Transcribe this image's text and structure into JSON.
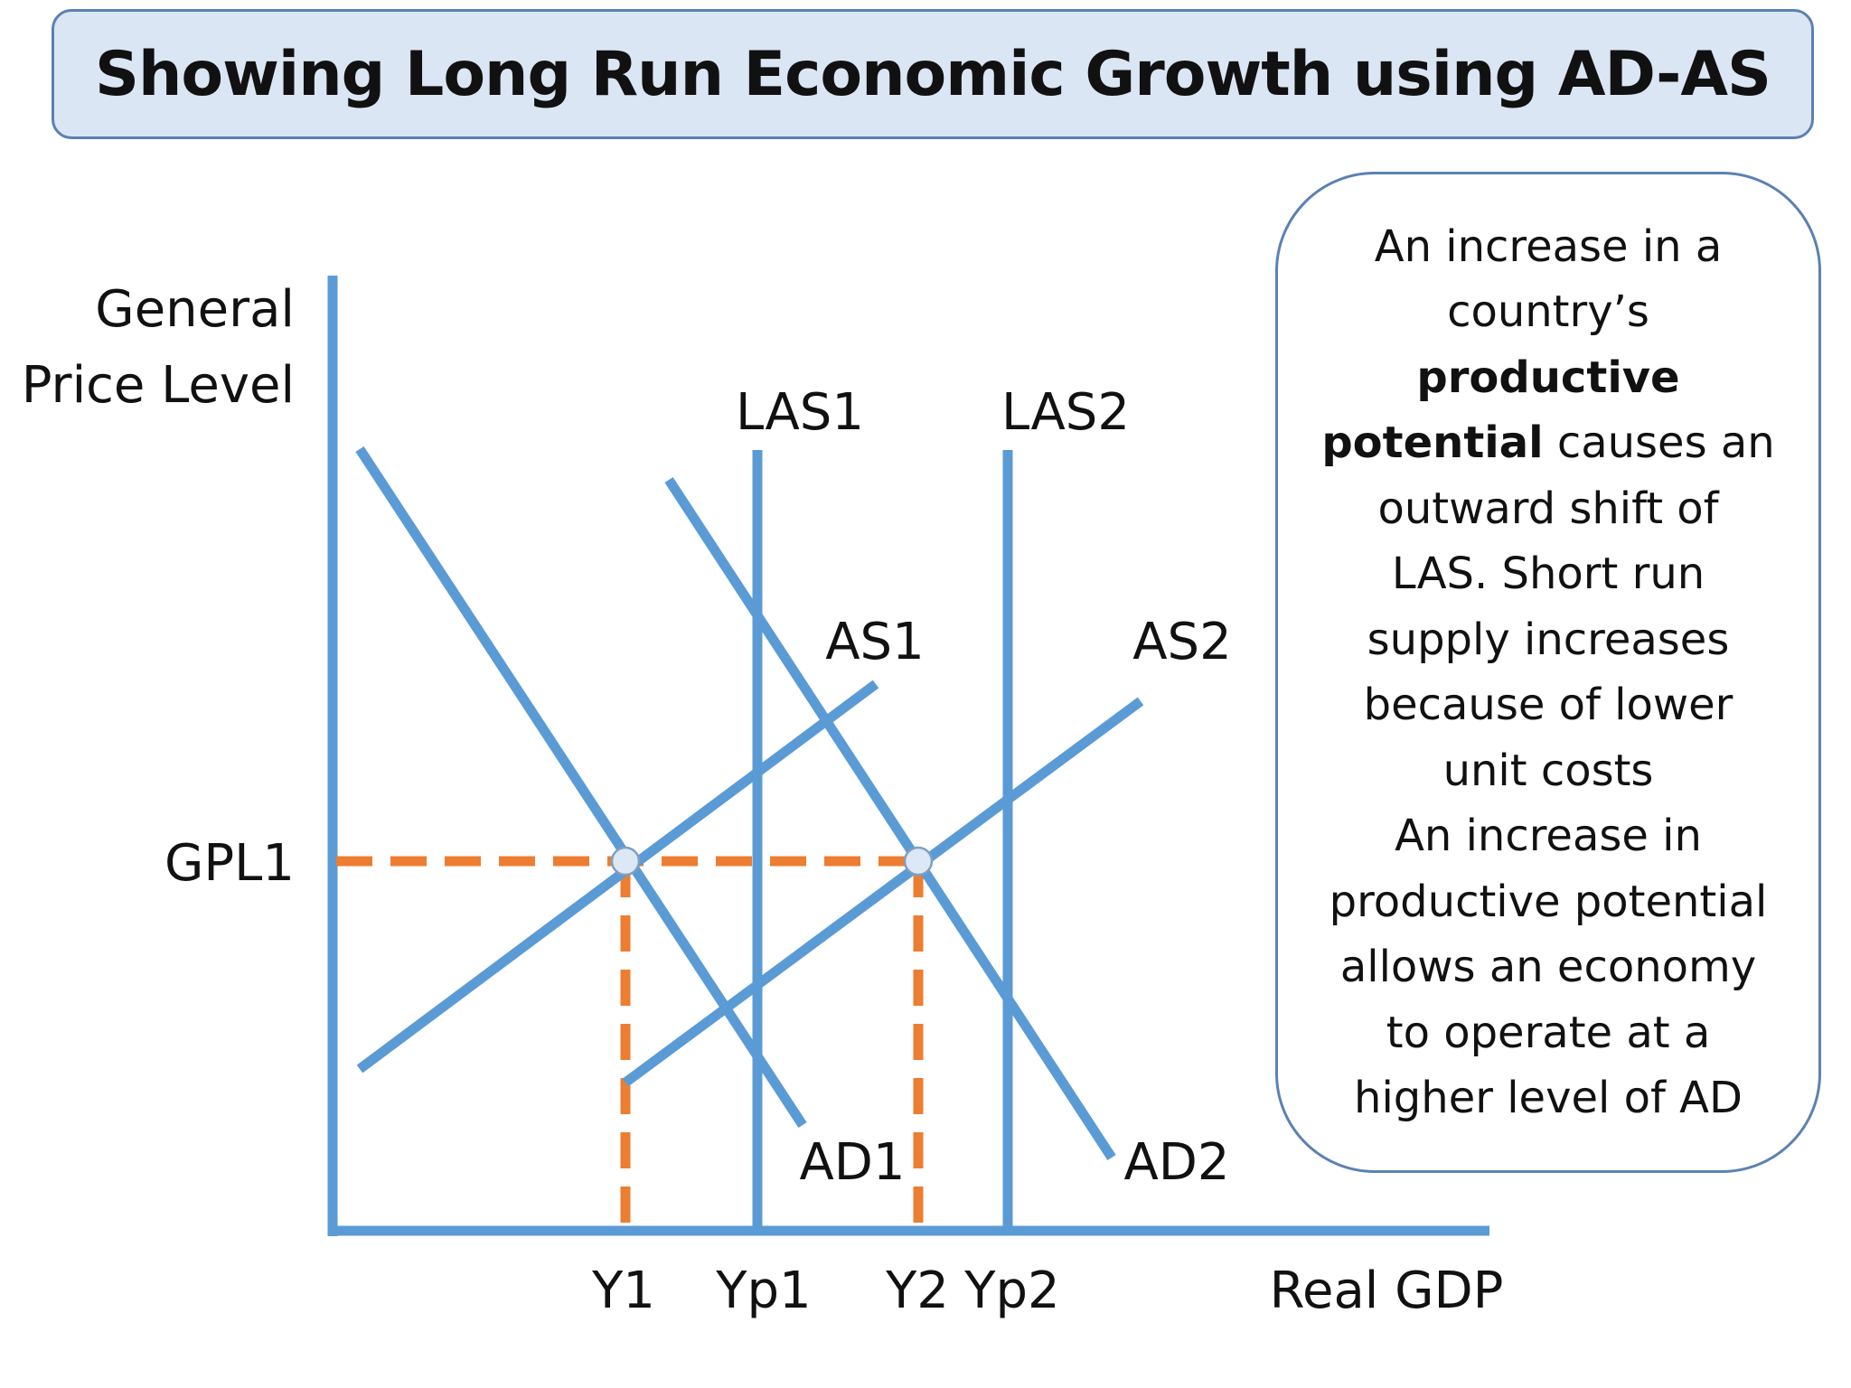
{
  "title": "Showing Long Run Economic Growth using AD-AS",
  "axes": {
    "y_label_line1": "General",
    "y_label_line2": "Price Level",
    "x_label": "Real GDP"
  },
  "curves": {
    "las1": "LAS1",
    "las2": "LAS2",
    "as1": "AS1",
    "as2": "AS2",
    "ad1": "AD1",
    "ad2": "AD2"
  },
  "markers": {
    "gpl1": "GPL1",
    "y1": "Y1",
    "yp1": "Yp1",
    "y2": "Y2",
    "yp2": "Yp2"
  },
  "info": {
    "line1": "An increase in a",
    "line2": "country’s",
    "bold1": "productive",
    "bold2": "potential",
    "line4_rest": " causes an",
    "line5": "outward shift of",
    "line6": "LAS. Short run",
    "line7": "supply increases",
    "line8": "because of lower",
    "line9": "unit costs",
    "line10": "An increase in",
    "line11": "productive potential",
    "line12": "allows an economy",
    "line13": "to operate at a",
    "line14": "higher level of AD"
  },
  "colors": {
    "curve_blue": "#5b9bd5",
    "guide_orange": "#ed7d31",
    "box_border": "#5b81b4",
    "title_fill": "#dbe6f4"
  }
}
